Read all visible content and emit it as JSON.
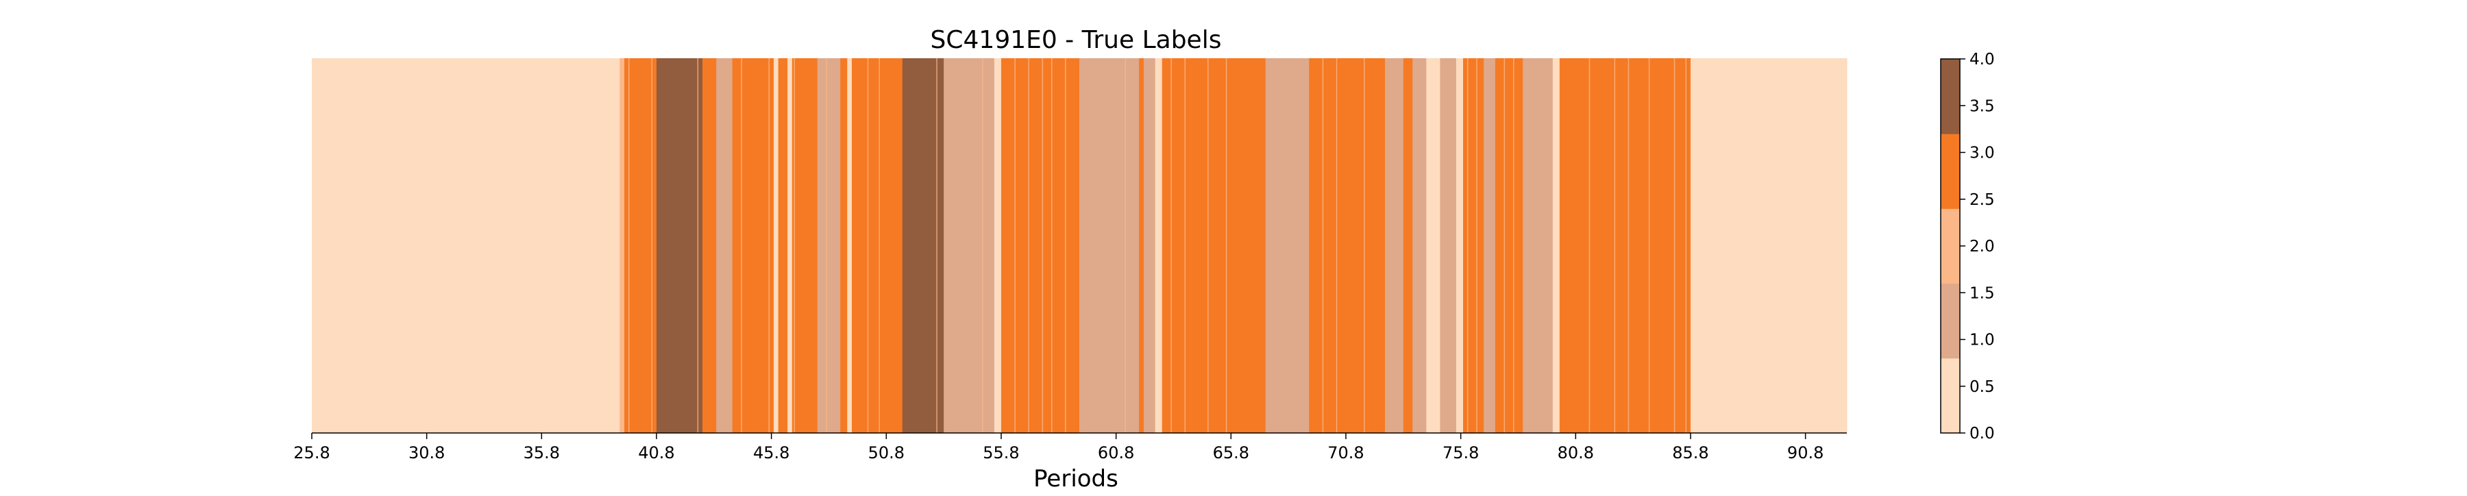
{
  "chart_data": {
    "type": "heatmap",
    "title": "SC4191E0 - True Labels",
    "xlabel": "Periods",
    "ylabel": "",
    "xlim": [
      25.8,
      92.6
    ],
    "x_ticks": [
      "25.8",
      "30.8",
      "35.8",
      "40.8",
      "45.8",
      "50.8",
      "55.8",
      "60.8",
      "65.8",
      "70.8",
      "75.8",
      "80.8",
      "85.8",
      "90.8"
    ],
    "x_tick_values": [
      25.8,
      30.8,
      35.8,
      40.8,
      45.8,
      50.8,
      55.8,
      60.8,
      65.8,
      70.8,
      75.8,
      80.8,
      85.8,
      90.8
    ],
    "grid": false,
    "legend": "none",
    "colorbar": {
      "range": [
        0,
        4
      ],
      "tick_labels": [
        "0.0",
        "0.5",
        "1.0",
        "1.5",
        "2.0",
        "2.5",
        "3.0",
        "3.5",
        "4.0"
      ],
      "tick_values": [
        0,
        0.5,
        1.0,
        1.5,
        2.0,
        2.5,
        3.0,
        3.5,
        4.0
      ],
      "levels": [
        0,
        1,
        2,
        3,
        4
      ],
      "colors": [
        "#fddcbf",
        "#dfa98b",
        "#fbb788",
        "#f57a23",
        "#925c3e"
      ]
    },
    "segments": [
      {
        "start": 25.8,
        "end": 39.2,
        "label": 0
      },
      {
        "start": 39.2,
        "end": 39.4,
        "label": 2
      },
      {
        "start": 39.4,
        "end": 40.8,
        "label": 3
      },
      {
        "start": 40.8,
        "end": 42.8,
        "label": 4
      },
      {
        "start": 42.8,
        "end": 43.4,
        "label": 3
      },
      {
        "start": 43.4,
        "end": 44.1,
        "label": 1
      },
      {
        "start": 44.1,
        "end": 45.9,
        "label": 3
      },
      {
        "start": 45.9,
        "end": 46.1,
        "label": 0
      },
      {
        "start": 46.1,
        "end": 46.5,
        "label": 3
      },
      {
        "start": 46.5,
        "end": 46.7,
        "label": 0
      },
      {
        "start": 46.7,
        "end": 47.8,
        "label": 3
      },
      {
        "start": 47.8,
        "end": 48.8,
        "label": 1
      },
      {
        "start": 48.8,
        "end": 49.1,
        "label": 3
      },
      {
        "start": 49.1,
        "end": 49.3,
        "label": 0
      },
      {
        "start": 49.3,
        "end": 51.5,
        "label": 3
      },
      {
        "start": 51.5,
        "end": 53.3,
        "label": 4
      },
      {
        "start": 53.3,
        "end": 54.3,
        "label": 1
      },
      {
        "start": 54.3,
        "end": 55.5,
        "label": 1
      },
      {
        "start": 55.5,
        "end": 55.8,
        "label": 0
      },
      {
        "start": 55.8,
        "end": 59.2,
        "label": 3
      },
      {
        "start": 59.2,
        "end": 61.8,
        "label": 1
      },
      {
        "start": 61.8,
        "end": 62.0,
        "label": 3
      },
      {
        "start": 62.0,
        "end": 62.5,
        "label": 1
      },
      {
        "start": 62.5,
        "end": 62.8,
        "label": 0
      },
      {
        "start": 62.8,
        "end": 67.3,
        "label": 3
      },
      {
        "start": 67.3,
        "end": 69.2,
        "label": 1
      },
      {
        "start": 69.2,
        "end": 72.5,
        "label": 3
      },
      {
        "start": 72.5,
        "end": 73.3,
        "label": 1
      },
      {
        "start": 73.3,
        "end": 73.7,
        "label": 3
      },
      {
        "start": 73.7,
        "end": 74.3,
        "label": 1
      },
      {
        "start": 74.3,
        "end": 74.9,
        "label": 0
      },
      {
        "start": 74.9,
        "end": 75.6,
        "label": 1
      },
      {
        "start": 75.6,
        "end": 75.9,
        "label": 0
      },
      {
        "start": 75.9,
        "end": 76.8,
        "label": 3
      },
      {
        "start": 76.8,
        "end": 77.3,
        "label": 1
      },
      {
        "start": 77.3,
        "end": 78.5,
        "label": 3
      },
      {
        "start": 78.5,
        "end": 79.8,
        "label": 1
      },
      {
        "start": 79.8,
        "end": 80.1,
        "label": 0
      },
      {
        "start": 80.1,
        "end": 85.8,
        "label": 3
      },
      {
        "start": 85.8,
        "end": 92.6,
        "label": 0
      }
    ],
    "separators": [
      39.6,
      40.6,
      42.6,
      44.5,
      45.7,
      46.8,
      48.2,
      50.0,
      50.5,
      53.0,
      55.0,
      56.4,
      57.0,
      57.6,
      58.0,
      58.6,
      61.2,
      63.2,
      63.8,
      64.8,
      65.6,
      69.8,
      70.4,
      71.6,
      76.1,
      76.5,
      77.7,
      78.1,
      81.4,
      82.5,
      83.1,
      84.0,
      85.1,
      85.6
    ]
  }
}
